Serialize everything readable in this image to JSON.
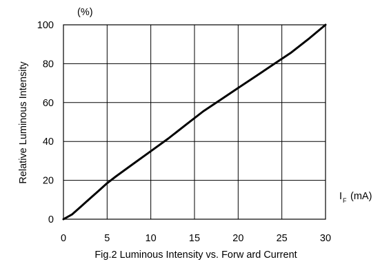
{
  "chart_data": {
    "type": "line",
    "title": "Fig.2 Luminous Intensity vs. Forw ard Current",
    "xlabel_main": "I",
    "xlabel_sub": "F",
    "xlabel_unit": "(mA)",
    "ylabel": "Relative Luminous Intensity",
    "yunit": "(%)",
    "xlim": [
      0,
      30
    ],
    "ylim": [
      0,
      100
    ],
    "xticks": [
      "0",
      "5",
      "10",
      "15",
      "20",
      "25",
      "30"
    ],
    "yticks": [
      "0",
      "20",
      "40",
      "60",
      "80",
      "100"
    ],
    "grid": true,
    "series": [
      {
        "x": [
          0,
          1,
          2,
          3,
          4,
          5,
          6,
          8,
          10,
          12,
          14,
          16,
          18,
          20,
          22,
          24,
          26,
          28,
          30
        ],
        "y": [
          0,
          2.5,
          6.5,
          10.5,
          14.5,
          18.5,
          22,
          28.5,
          35,
          41.5,
          48.5,
          55.5,
          61.5,
          67.5,
          73.5,
          79.5,
          85.5,
          92.5,
          100
        ]
      }
    ]
  }
}
